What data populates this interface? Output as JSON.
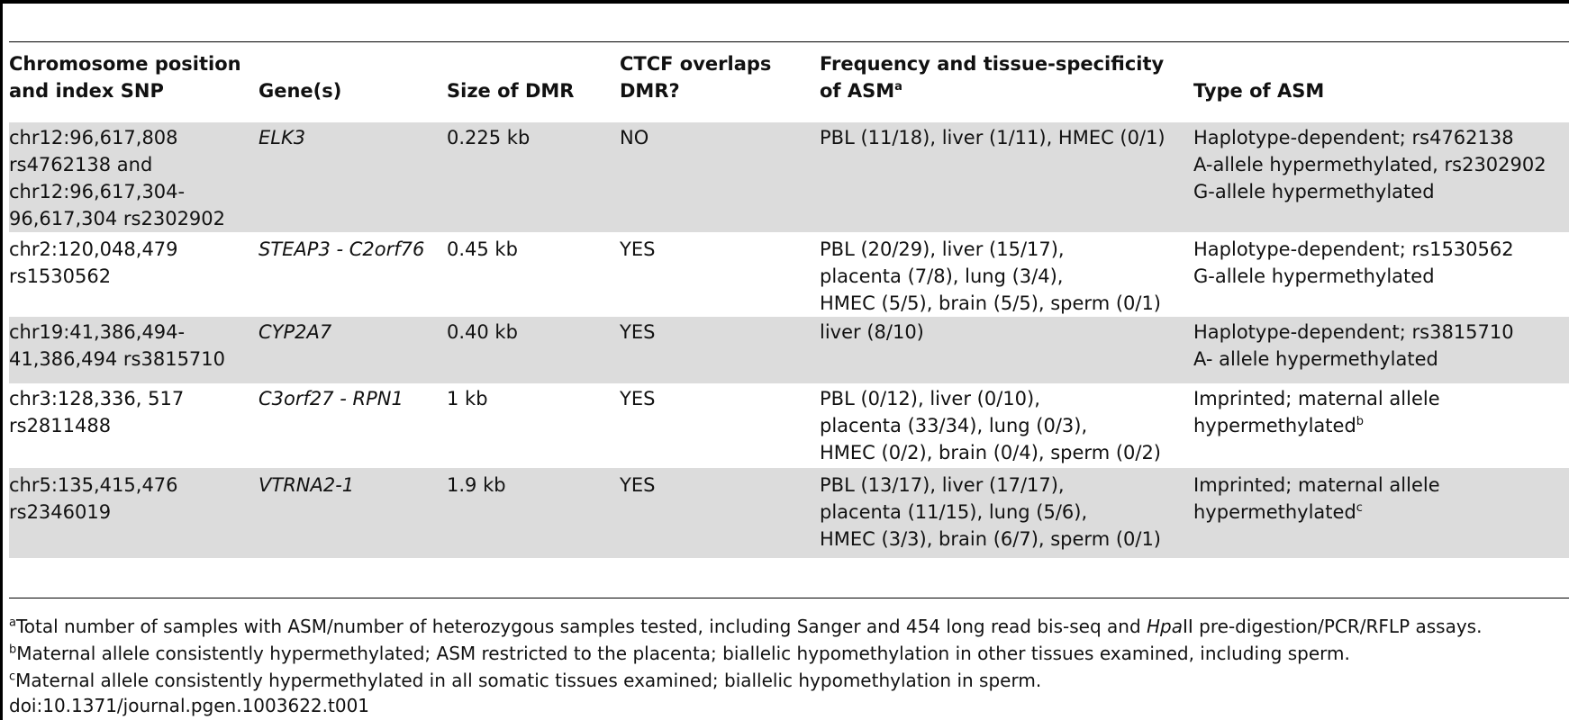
{
  "table": {
    "headers": {
      "chrom_line1": "Chromosome position",
      "chrom_line2": "and index SNP",
      "gene": "Gene(s)",
      "size": "Size of DMR",
      "ctcf_line1": "CTCF overlaps",
      "ctcf_line2": "DMR?",
      "freq_line1": "Frequency and tissue-specificity",
      "freq_line2": "of ASM",
      "freq_sup": "a",
      "type": "Type of ASM"
    },
    "rows": [
      {
        "chrom": [
          "chr12:96,617,808",
          "rs4762138 and",
          "chr12:96,617,304-",
          "96,617,304 rs2302902"
        ],
        "gene": "ELK3",
        "size": "0.225 kb",
        "ctcf": "NO",
        "freq": [
          "PBL (11/18), liver (1/11), HMEC (0/1)"
        ],
        "type": [
          "Haplotype-dependent; rs4762138",
          "A-allele hypermethylated, rs2302902",
          "G-allele hypermethylated"
        ],
        "type_sup": ""
      },
      {
        "chrom": [
          "chr2:120,048,479",
          "rs1530562"
        ],
        "gene": "STEAP3 - C2orf76",
        "size": "0.45 kb",
        "ctcf": "YES",
        "freq": [
          "PBL (20/29), liver (15/17),",
          "placenta (7/8), lung (3/4),",
          "HMEC (5/5), brain (5/5), sperm (0/1)"
        ],
        "type": [
          "Haplotype-dependent; rs1530562",
          "G-allele hypermethylated"
        ],
        "type_sup": ""
      },
      {
        "chrom": [
          "chr19:41,386,494-",
          "41,386,494 rs3815710"
        ],
        "gene": "CYP2A7",
        "size": "0.40 kb",
        "ctcf": "YES",
        "freq": [
          "liver (8/10)"
        ],
        "type": [
          "Haplotype-dependent; rs3815710",
          "A- allele hypermethylated"
        ],
        "type_sup": ""
      },
      {
        "chrom": [
          "chr3:128,336, 517",
          "rs2811488"
        ],
        "gene": "C3orf27 - RPN1",
        "size": "1 kb",
        "ctcf": "YES",
        "freq": [
          "PBL (0/12), liver (0/10),",
          "placenta (33/34), lung (0/3),",
          "HMEC (0/2), brain (0/4), sperm (0/2)"
        ],
        "type": [
          "Imprinted; maternal allele",
          "hypermethylated"
        ],
        "type_sup": "b"
      },
      {
        "chrom": [
          "chr5:135,415,476",
          "rs2346019"
        ],
        "gene": "VTRNA2-1",
        "size": "1.9 kb",
        "ctcf": "YES",
        "freq": [
          "PBL (13/17), liver (17/17),",
          "placenta (11/15), lung (5/6),",
          "HMEC (3/3), brain (6/7), sperm (0/1)"
        ],
        "type": [
          "Imprinted; maternal allele",
          "hypermethylated"
        ],
        "type_sup": "c"
      }
    ]
  },
  "footnotes": {
    "a_mark": "a",
    "a_text_pre": "Total number of samples with ASM/number of heterozygous samples tested, including Sanger and 454 long read bis-seq and ",
    "a_text_italic": "Hpa",
    "a_text_post": "II pre-digestion/PCR/RFLP assays.",
    "b_mark": "b",
    "b_text": "Maternal allele consistently hypermethylated; ASM restricted to the placenta; biallelic hypomethylation in other tissues examined, including sperm.",
    "c_mark": "c",
    "c_text": "Maternal allele consistently hypermethylated in all somatic tissues examined; biallelic hypomethylation in sperm.",
    "doi": "doi:10.1371/journal.pgen.1003622.t001"
  }
}
